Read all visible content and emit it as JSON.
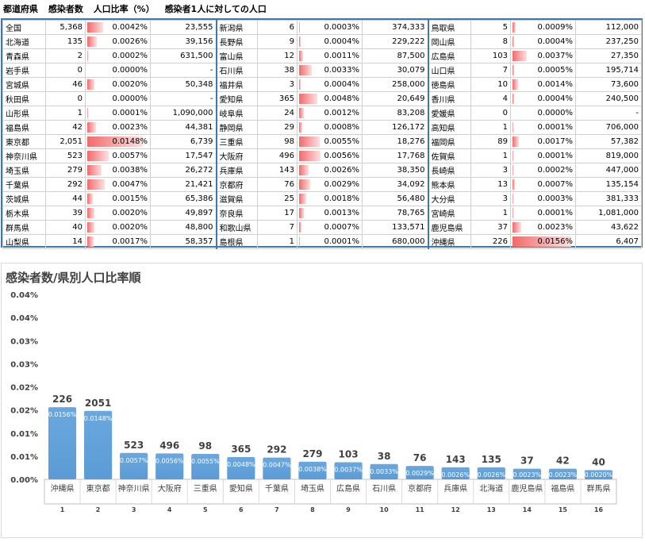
{
  "header": {
    "col_pref": "都道府県",
    "col_cases": "感染者数",
    "col_ratio": "人口比率（%）",
    "col_per": "感染者1人に対しての人口"
  },
  "table": {
    "columns": [
      [
        {
          "name": "全国",
          "cases": "5,368",
          "ratio": "0.0042%",
          "per": "23,555"
        },
        {
          "name": "北海道",
          "cases": "135",
          "ratio": "0.0026%",
          "per": "39,156"
        },
        {
          "name": "青森県",
          "cases": "2",
          "ratio": "0.0002%",
          "per": "631,500"
        },
        {
          "name": "岩手県",
          "cases": "0",
          "ratio": "0.0000%",
          "per": "-"
        },
        {
          "name": "宮城県",
          "cases": "46",
          "ratio": "0.0020%",
          "per": "50,348"
        },
        {
          "name": "秋田県",
          "cases": "0",
          "ratio": "0.0000%",
          "per": "-"
        },
        {
          "name": "山形県",
          "cases": "1",
          "ratio": "0.0001%",
          "per": "1,090,000"
        },
        {
          "name": "福島県",
          "cases": "42",
          "ratio": "0.0023%",
          "per": "44,381"
        },
        {
          "name": "東京都",
          "cases": "2,051",
          "ratio": "0.0148%",
          "per": "6,739"
        },
        {
          "name": "神奈川県",
          "cases": "523",
          "ratio": "0.0057%",
          "per": "17,547"
        },
        {
          "name": "埼玉県",
          "cases": "279",
          "ratio": "0.0038%",
          "per": "26,272"
        },
        {
          "name": "千葉県",
          "cases": "292",
          "ratio": "0.0047%",
          "per": "21,421"
        },
        {
          "name": "茨城県",
          "cases": "44",
          "ratio": "0.0015%",
          "per": "65,386"
        },
        {
          "name": "栃木県",
          "cases": "39",
          "ratio": "0.0020%",
          "per": "49,897"
        },
        {
          "name": "群馬県",
          "cases": "40",
          "ratio": "0.0020%",
          "per": "48,800"
        },
        {
          "name": "山梨県",
          "cases": "14",
          "ratio": "0.0017%",
          "per": "58,357"
        }
      ],
      [
        {
          "name": "新潟県",
          "cases": "6",
          "ratio": "0.0003%",
          "per": "374,333"
        },
        {
          "name": "長野県",
          "cases": "9",
          "ratio": "0.0004%",
          "per": "229,222"
        },
        {
          "name": "富山県",
          "cases": "12",
          "ratio": "0.0011%",
          "per": "87,500"
        },
        {
          "name": "石川県",
          "cases": "38",
          "ratio": "0.0033%",
          "per": "30,079"
        },
        {
          "name": "福井県",
          "cases": "3",
          "ratio": "0.0004%",
          "per": "258,000"
        },
        {
          "name": "愛知県",
          "cases": "365",
          "ratio": "0.0048%",
          "per": "20,649"
        },
        {
          "name": "岐阜県",
          "cases": "24",
          "ratio": "0.0012%",
          "per": "83,208"
        },
        {
          "name": "静岡県",
          "cases": "29",
          "ratio": "0.0008%",
          "per": "126,172"
        },
        {
          "name": "三重県",
          "cases": "98",
          "ratio": "0.0055%",
          "per": "18,276"
        },
        {
          "name": "大阪府",
          "cases": "496",
          "ratio": "0.0056%",
          "per": "17,768"
        },
        {
          "name": "兵庫県",
          "cases": "143",
          "ratio": "0.0026%",
          "per": "38,350"
        },
        {
          "name": "京都府",
          "cases": "76",
          "ratio": "0.0029%",
          "per": "34,092"
        },
        {
          "name": "滋賀県",
          "cases": "25",
          "ratio": "0.0018%",
          "per": "56,480"
        },
        {
          "name": "奈良県",
          "cases": "17",
          "ratio": "0.0013%",
          "per": "78,765"
        },
        {
          "name": "和歌山県",
          "cases": "7",
          "ratio": "0.0007%",
          "per": "133,571"
        },
        {
          "name": "島根県",
          "cases": "1",
          "ratio": "0.0001%",
          "per": "680,000"
        }
      ],
      [
        {
          "name": "鳥取県",
          "cases": "5",
          "ratio": "0.0009%",
          "per": "112,000"
        },
        {
          "name": "岡山県",
          "cases": "8",
          "ratio": "0.0004%",
          "per": "237,250"
        },
        {
          "name": "広島県",
          "cases": "103",
          "ratio": "0.0037%",
          "per": "27,350"
        },
        {
          "name": "山口県",
          "cases": "7",
          "ratio": "0.0005%",
          "per": "195,714"
        },
        {
          "name": "徳島県",
          "cases": "10",
          "ratio": "0.0014%",
          "per": "73,600"
        },
        {
          "name": "香川県",
          "cases": "4",
          "ratio": "0.0004%",
          "per": "240,500"
        },
        {
          "name": "愛媛県",
          "cases": "0",
          "ratio": "0.0000%",
          "per": "-"
        },
        {
          "name": "高知県",
          "cases": "1",
          "ratio": "0.0001%",
          "per": "706,000"
        },
        {
          "name": "福岡県",
          "cases": "89",
          "ratio": "0.0017%",
          "per": "57,382"
        },
        {
          "name": "佐賀県",
          "cases": "1",
          "ratio": "0.0001%",
          "per": "819,000"
        },
        {
          "name": "長崎県",
          "cases": "3",
          "ratio": "0.0002%",
          "per": "447,000"
        },
        {
          "name": "熊本県",
          "cases": "13",
          "ratio": "0.0007%",
          "per": "135,154"
        },
        {
          "name": "大分県",
          "cases": "3",
          "ratio": "0.0003%",
          "per": "381,333"
        },
        {
          "name": "宮崎県",
          "cases": "1",
          "ratio": "0.0001%",
          "per": "1,081,000"
        },
        {
          "name": "鹿児島県",
          "cases": "37",
          "ratio": "0.0023%",
          "per": "43,622"
        },
        {
          "name": "沖縄県",
          "cases": "226",
          "ratio": "0.0156%",
          "per": "6,407"
        }
      ]
    ]
  },
  "chart_data": {
    "type": "bar",
    "title": "感染者数/県別人口比率順",
    "categories": [
      "沖縄県",
      "東京都",
      "神奈川県",
      "大阪府",
      "三重県",
      "愛知県",
      "千葉県",
      "埼玉県",
      "広島県",
      "石川県",
      "京都府",
      "兵庫県",
      "北海道",
      "鹿児島県",
      "福島県",
      "群馬県"
    ],
    "ranks": [
      "1",
      "2",
      "3",
      "4",
      "5",
      "6",
      "7",
      "8",
      "9",
      "10",
      "11",
      "12",
      "13",
      "14",
      "15",
      "16"
    ],
    "values": [
      0.0156,
      0.0148,
      0.0057,
      0.0056,
      0.0055,
      0.0048,
      0.0047,
      0.0038,
      0.0037,
      0.0033,
      0.0029,
      0.0026,
      0.0026,
      0.0023,
      0.0023,
      0.002
    ],
    "value_labels": [
      "0.0156%",
      "0.0148%",
      "0.0057%",
      "0.0056%",
      "0.0055%",
      "0.0048%",
      "0.0047%",
      "0.0038%",
      "0.0037%",
      "0.0033%",
      "0.0029%",
      "0.0026%",
      "0.0026%",
      "0.0023%",
      "0.0023%",
      "0.0020%"
    ],
    "cases_labels": [
      "226",
      "2051",
      "523",
      "496",
      "98",
      "365",
      "292",
      "279",
      "103",
      "38",
      "76",
      "143",
      "135",
      "37",
      "42",
      "40"
    ],
    "ylim": [
      0,
      0.04
    ],
    "yticks": [
      0,
      0.005,
      0.01,
      0.015,
      0.02,
      0.025,
      0.03,
      0.035,
      0.04
    ],
    "ytick_labels": [
      "0.00%",
      "0.01%",
      "0.01%",
      "0.02%",
      "0.02%",
      "0.03%",
      "0.03%",
      "0.04%",
      "0.04%"
    ],
    "bar_color": "#5b9bd5",
    "grid": false,
    "legend": "none"
  }
}
